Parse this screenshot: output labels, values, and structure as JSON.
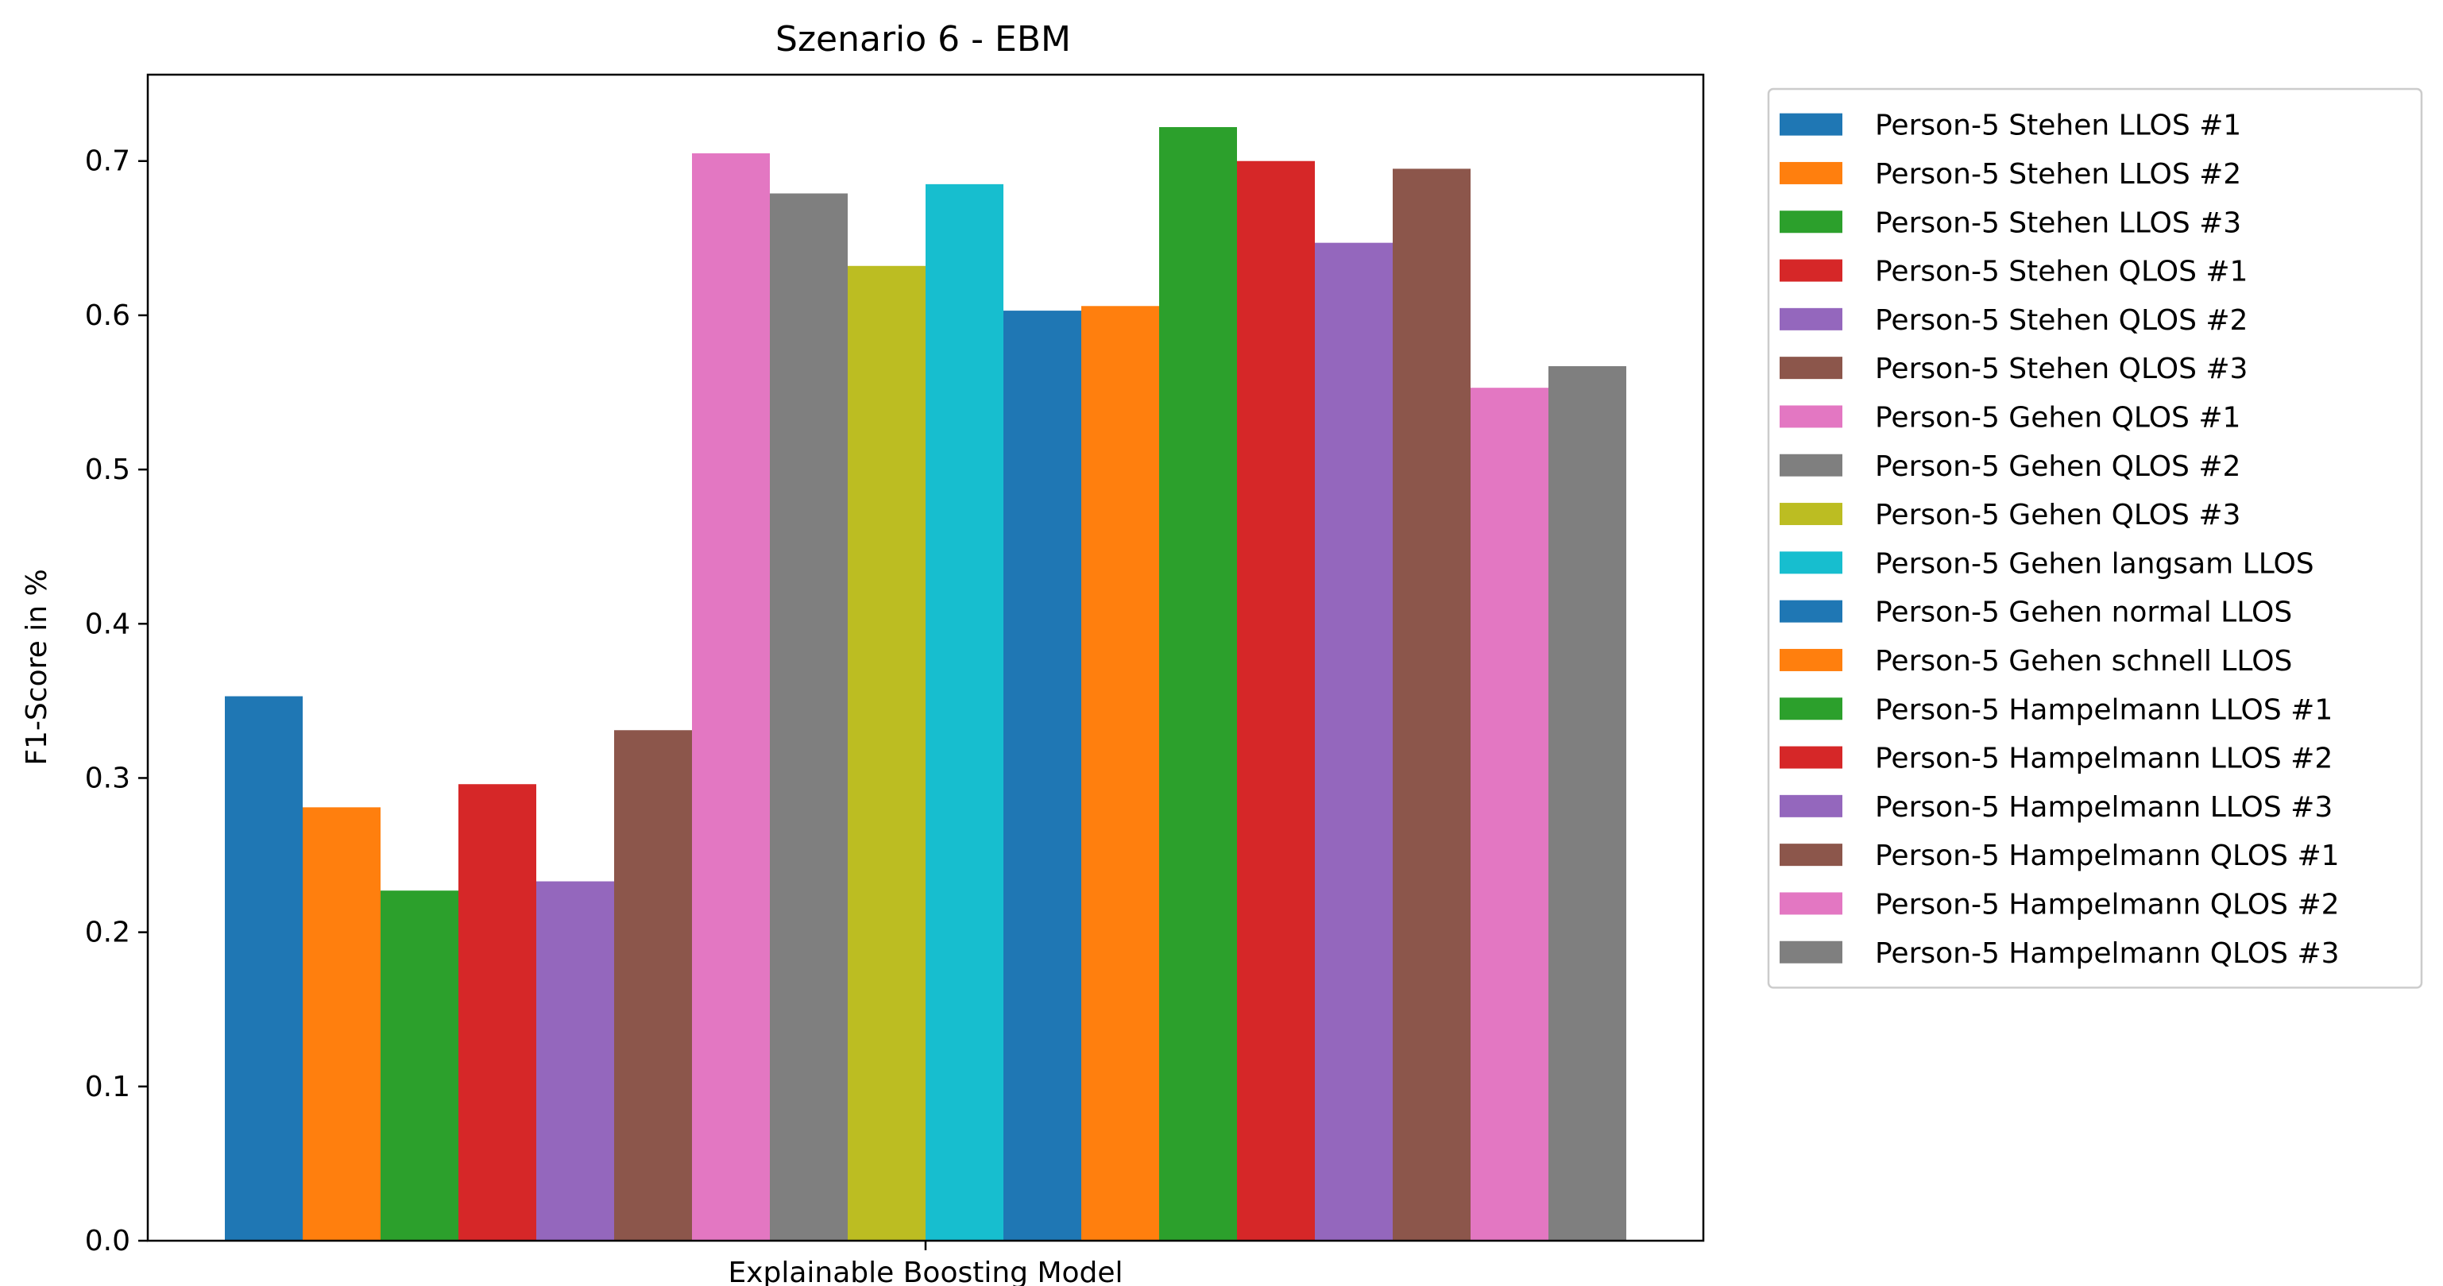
{
  "chart_data": {
    "type": "bar",
    "title": "Szenario 6 - EBM",
    "xlabel": "",
    "ylabel": "F1-Score in %",
    "categories": [
      "Explainable Boosting Model"
    ],
    "ylim": [
      0,
      0.756
    ],
    "yticks": [
      "0.0",
      "0.1",
      "0.2",
      "0.3",
      "0.4",
      "0.5",
      "0.6",
      "0.7"
    ],
    "grid": false,
    "legend_position": "outside-right",
    "series": [
      {
        "name": "Person-5 Stehen LLOS #1",
        "color": "#1f77b4",
        "values": [
          0.353
        ]
      },
      {
        "name": "Person-5 Stehen LLOS #2",
        "color": "#ff7f0e",
        "values": [
          0.281
        ]
      },
      {
        "name": "Person-5 Stehen LLOS #3",
        "color": "#2ca02c",
        "values": [
          0.227
        ]
      },
      {
        "name": "Person-5 Stehen QLOS #1",
        "color": "#d62728",
        "values": [
          0.296
        ]
      },
      {
        "name": "Person-5 Stehen QLOS #2",
        "color": "#9467bd",
        "values": [
          0.233
        ]
      },
      {
        "name": "Person-5 Stehen QLOS #3",
        "color": "#8c564b",
        "values": [
          0.331
        ]
      },
      {
        "name": "Person-5 Gehen QLOS #1",
        "color": "#e377c2",
        "values": [
          0.705
        ]
      },
      {
        "name": "Person-5 Gehen QLOS #2",
        "color": "#7f7f7f",
        "values": [
          0.679
        ]
      },
      {
        "name": "Person-5 Gehen QLOS #3",
        "color": "#bcbd22",
        "values": [
          0.632
        ]
      },
      {
        "name": "Person-5 Gehen langsam LLOS",
        "color": "#17becf",
        "values": [
          0.685
        ]
      },
      {
        "name": "Person-5 Gehen normal LLOS",
        "color": "#1f77b4",
        "values": [
          0.603
        ]
      },
      {
        "name": "Person-5 Gehen schnell LLOS",
        "color": "#ff7f0e",
        "values": [
          0.606
        ]
      },
      {
        "name": "Person-5 Hampelmann LLOS #1",
        "color": "#2ca02c",
        "values": [
          0.722
        ]
      },
      {
        "name": "Person-5 Hampelmann LLOS #2",
        "color": "#d62728",
        "values": [
          0.7
        ]
      },
      {
        "name": "Person-5 Hampelmann LLOS #3",
        "color": "#9467bd",
        "values": [
          0.647
        ]
      },
      {
        "name": "Person-5 Hampelmann QLOS #1",
        "color": "#8c564b",
        "values": [
          0.695
        ]
      },
      {
        "name": "Person-5 Hampelmann QLOS #2",
        "color": "#e377c2",
        "values": [
          0.553
        ]
      },
      {
        "name": "Person-5 Hampelmann QLOS #3",
        "color": "#7f7f7f",
        "values": [
          0.567
        ]
      }
    ]
  }
}
